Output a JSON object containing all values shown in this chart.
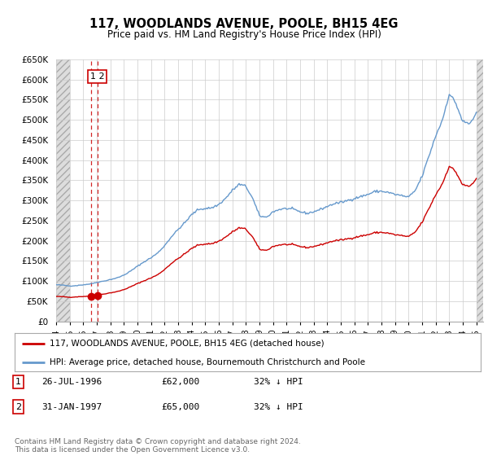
{
  "title": "117, WOODLANDS AVENUE, POOLE, BH15 4EG",
  "subtitle": "Price paid vs. HM Land Registry's House Price Index (HPI)",
  "legend_label_red": "117, WOODLANDS AVENUE, POOLE, BH15 4EG (detached house)",
  "legend_label_blue": "HPI: Average price, detached house, Bournemouth Christchurch and Poole",
  "table_rows": [
    {
      "num": "1",
      "date": "26-JUL-1996",
      "price": "£62,000",
      "hpi": "32% ↓ HPI"
    },
    {
      "num": "2",
      "date": "31-JAN-1997",
      "price": "£65,000",
      "hpi": "32% ↓ HPI"
    }
  ],
  "footer": "Contains HM Land Registry data © Crown copyright and database right 2024.\nThis data is licensed under the Open Government Licence v3.0.",
  "sale_points": [
    {
      "year": 1996.57,
      "price": 62000
    },
    {
      "year": 1997.08,
      "price": 65000
    }
  ],
  "ylim": [
    0,
    650000
  ],
  "xlim": [
    1994.0,
    2025.5
  ],
  "yticks": [
    0,
    50000,
    100000,
    150000,
    200000,
    250000,
    300000,
    350000,
    400000,
    450000,
    500000,
    550000,
    600000,
    650000
  ],
  "xticks": [
    1994,
    1995,
    1996,
    1997,
    1998,
    1999,
    2000,
    2001,
    2002,
    2003,
    2004,
    2005,
    2006,
    2007,
    2008,
    2009,
    2010,
    2011,
    2012,
    2013,
    2014,
    2015,
    2016,
    2017,
    2018,
    2019,
    2020,
    2021,
    2022,
    2023,
    2024,
    2025
  ],
  "hatch_end": 1995.0,
  "colors": {
    "red_line": "#cc0000",
    "blue_line": "#6699cc",
    "sale_dot": "#cc0000",
    "dashed_vertical": "#cc0000",
    "grid": "#cccccc",
    "box_border": "#cc0000",
    "table_box_border": "#cc0000",
    "background": "#ffffff"
  }
}
